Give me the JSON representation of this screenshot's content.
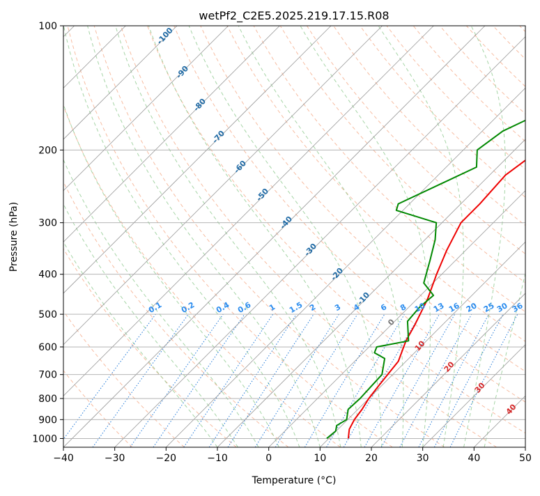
{
  "chart_data": {
    "type": "line",
    "title": "wetPf2_C2E5.2025.219.17.15.R08",
    "xlabel": "Temperature (°C)",
    "ylabel": "Pressure (hPa)",
    "xlim": [
      -40,
      50
    ],
    "ylim": [
      1050,
      100
    ],
    "y_scale": "log",
    "grid": true,
    "x_ticks": [
      -40,
      -30,
      -20,
      -10,
      0,
      10,
      20,
      30,
      40,
      50
    ],
    "y_ticks": [
      100,
      200,
      300,
      400,
      500,
      600,
      700,
      800,
      900,
      1000
    ],
    "series": [
      {
        "color": "#ee0000",
        "x": [
          13.8,
          12.2,
          11.3,
          10.8,
          10.0,
          9.5,
          9.0,
          8.5,
          6.0,
          4.6,
          2.1,
          -1.0,
          -3.7,
          -6.3,
          -6.3,
          -6.9,
          -5.8,
          -2.3,
          3.6,
          5.9,
          8.4,
          12.3
        ],
        "y": [
          1000,
          950,
          900,
          850,
          800,
          750,
          700,
          650,
          580,
          530,
          460,
          400,
          350,
          300,
          270,
          230,
          210,
          190,
          160,
          130,
          115,
          100
        ]
      },
      {
        "color": "#008800",
        "x": [
          9.6,
          9.9,
          9.0,
          9.8,
          8.1,
          8.3,
          8.1,
          7.9,
          5.3,
          2.2,
          1.5,
          6.5,
          2.5,
          2.1,
          2.5,
          -1.8,
          -5.0,
          -8.0,
          -11.1,
          -21.3,
          -22.2,
          -14.1,
          -17.3,
          -16.0,
          -4.9,
          -3.6,
          -1.4,
          -0.2
        ],
        "y": [
          1000,
          960,
          930,
          900,
          850,
          800,
          750,
          700,
          640,
          620,
          600,
          580,
          520,
          480,
          450,
          420,
          370,
          330,
          300,
          280,
          270,
          220,
          200,
          180,
          135,
          120,
          108,
          100
        ]
      }
    ],
    "dry_adiabat_labels": [
      "-100",
      "-90",
      "-80",
      "-70",
      "-60",
      "-50",
      "-40",
      "-30",
      "-20",
      "-10"
    ],
    "mixing_ratio_labels": [
      "0.1",
      "0.2",
      "0.4",
      "0.6",
      "1",
      "1.5",
      "2",
      "3",
      "4",
      "6",
      "8",
      "10",
      "13",
      "16",
      "20",
      "25",
      "30",
      "36"
    ],
    "moist_adiabat_labels": [
      "0",
      "10",
      "20",
      "30",
      "40"
    ],
    "colors": {
      "temperature": "#ee0000",
      "dewpoint": "#008800",
      "dry_adiabat": "#f4a582",
      "moist_adiabat": "#8fc98f",
      "mixing_ratio": "#1f78d8",
      "isotherm": "#999999",
      "isobar": "#aaaaaa",
      "dry_label": "#1f6aa5",
      "moist_label": "#d62728",
      "mixing_label": "#2b8cee"
    }
  }
}
